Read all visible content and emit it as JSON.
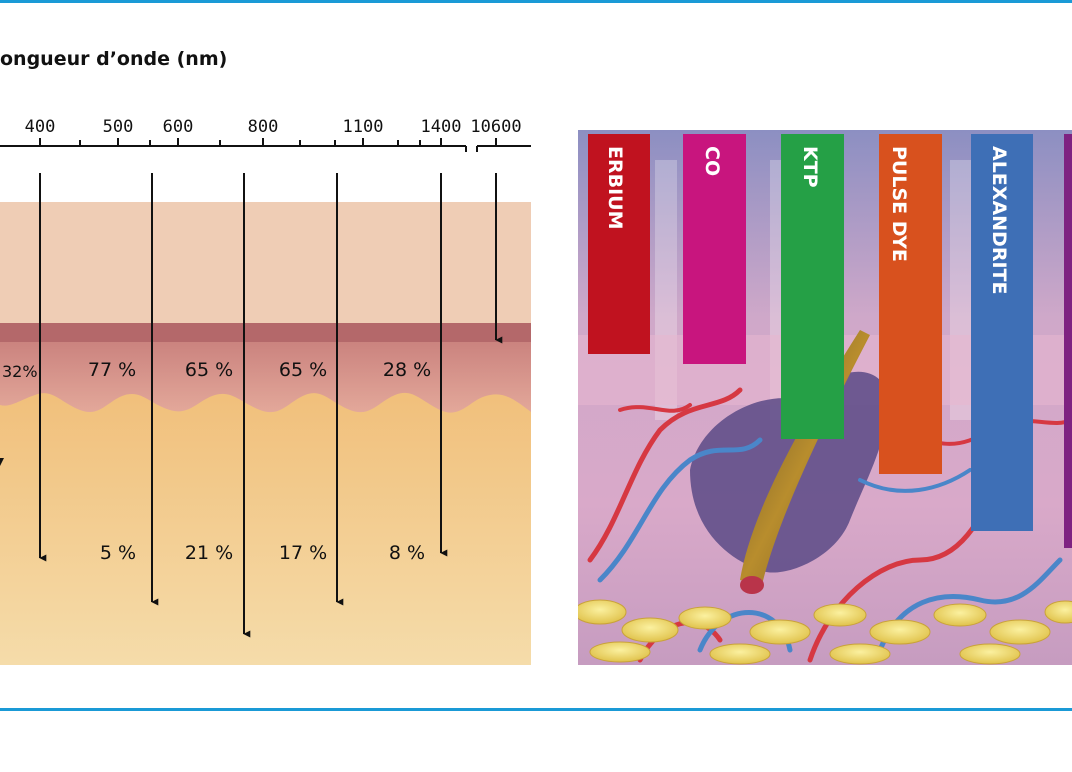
{
  "axis": {
    "title": "ongueur d’onde (nm)",
    "ticks": [
      "400",
      "500",
      "600",
      "800",
      "1100",
      "1400",
      "10600"
    ]
  },
  "epidermis_penetration": [
    "32%",
    "77 %",
    "65 %",
    "65 %",
    "28 %"
  ],
  "dermis_penetration": [
    "5 %",
    "21 %",
    "17 %",
    "8 %"
  ],
  "lasers": [
    {
      "name": "ERBIUM",
      "color": "#c0121f"
    },
    {
      "name": "CO",
      "color": "#c8157e"
    },
    {
      "name": "KTP",
      "color": "#25a046"
    },
    {
      "name": "PULSE DYE",
      "color": "#d8511e"
    },
    {
      "name": "ALEXANDRITE",
      "color": "#3e6fb6"
    },
    {
      "name": "",
      "color": "#7e2281"
    }
  ],
  "colors": {
    "rule": "#1a9ad6",
    "upper_layer": "#efcdb5",
    "band": "#b4686a",
    "dermis": "#f1c58a"
  }
}
